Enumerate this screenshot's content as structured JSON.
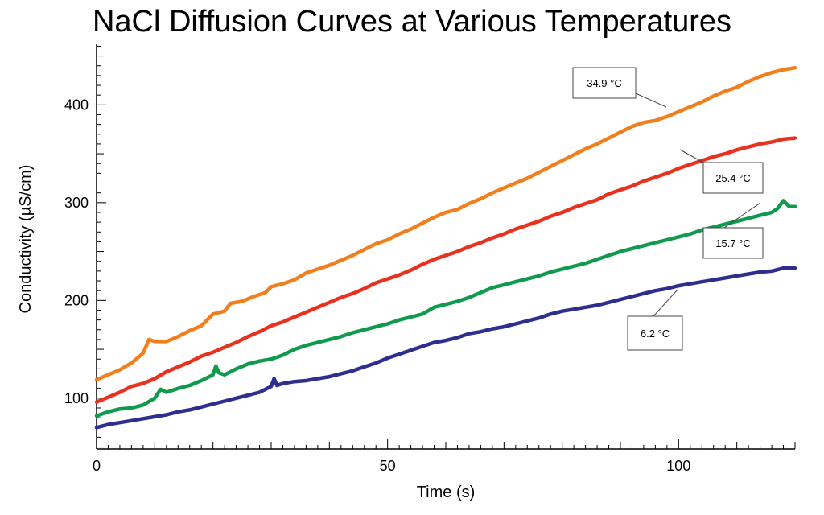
{
  "chart_data": {
    "type": "line",
    "title": "NaCl Diffusion Curves at Various Temperatures",
    "xlabel": "Time (s)",
    "ylabel": "Conductivity (µS/cm)",
    "xlim": [
      0,
      120
    ],
    "ylim": [
      48,
      462
    ],
    "x_ticks": [
      0,
      50,
      100
    ],
    "y_ticks": [
      100,
      200,
      300,
      400
    ],
    "grid": false,
    "series": [
      {
        "name": "34.9 °C",
        "color": "#f07f1e",
        "points": [
          [
            0,
            119
          ],
          [
            2,
            124
          ],
          [
            4,
            129
          ],
          [
            6,
            136
          ],
          [
            8,
            146
          ],
          [
            9,
            160
          ],
          [
            10,
            158
          ],
          [
            12,
            158
          ],
          [
            14,
            163
          ],
          [
            16,
            169
          ],
          [
            18,
            174
          ],
          [
            20,
            186
          ],
          [
            22,
            189
          ],
          [
            23,
            197
          ],
          [
            25,
            199
          ],
          [
            27,
            204
          ],
          [
            29,
            208
          ],
          [
            30,
            214
          ],
          [
            32,
            217
          ],
          [
            34,
            221
          ],
          [
            36,
            228
          ],
          [
            38,
            232
          ],
          [
            40,
            236
          ],
          [
            42,
            241
          ],
          [
            44,
            246
          ],
          [
            46,
            252
          ],
          [
            48,
            258
          ],
          [
            50,
            262
          ],
          [
            52,
            268
          ],
          [
            54,
            273
          ],
          [
            56,
            279
          ],
          [
            58,
            285
          ],
          [
            60,
            290
          ],
          [
            62,
            293
          ],
          [
            64,
            299
          ],
          [
            66,
            304
          ],
          [
            68,
            310
          ],
          [
            70,
            315
          ],
          [
            72,
            320
          ],
          [
            74,
            325
          ],
          [
            76,
            331
          ],
          [
            78,
            337
          ],
          [
            80,
            343
          ],
          [
            82,
            349
          ],
          [
            84,
            355
          ],
          [
            86,
            360
          ],
          [
            88,
            366
          ],
          [
            90,
            372
          ],
          [
            92,
            378
          ],
          [
            94,
            382
          ],
          [
            96,
            384
          ],
          [
            98,
            388
          ],
          [
            100,
            393
          ],
          [
            102,
            398
          ],
          [
            104,
            403
          ],
          [
            106,
            409
          ],
          [
            108,
            414
          ],
          [
            110,
            418
          ],
          [
            112,
            424
          ],
          [
            114,
            429
          ],
          [
            116,
            433
          ],
          [
            118,
            436
          ],
          [
            120,
            438
          ]
        ]
      },
      {
        "name": "25.4 °C",
        "color": "#e8321f",
        "points": [
          [
            0,
            96
          ],
          [
            2,
            101
          ],
          [
            4,
            106
          ],
          [
            6,
            112
          ],
          [
            8,
            115
          ],
          [
            10,
            120
          ],
          [
            12,
            127
          ],
          [
            14,
            132
          ],
          [
            16,
            137
          ],
          [
            18,
            143
          ],
          [
            20,
            147
          ],
          [
            22,
            152
          ],
          [
            24,
            157
          ],
          [
            26,
            163
          ],
          [
            28,
            168
          ],
          [
            30,
            174
          ],
          [
            32,
            178
          ],
          [
            34,
            183
          ],
          [
            36,
            188
          ],
          [
            38,
            193
          ],
          [
            40,
            198
          ],
          [
            42,
            203
          ],
          [
            44,
            207
          ],
          [
            46,
            212
          ],
          [
            48,
            218
          ],
          [
            50,
            222
          ],
          [
            52,
            226
          ],
          [
            54,
            231
          ],
          [
            56,
            237
          ],
          [
            58,
            242
          ],
          [
            60,
            246
          ],
          [
            62,
            250
          ],
          [
            64,
            255
          ],
          [
            66,
            259
          ],
          [
            68,
            264
          ],
          [
            70,
            268
          ],
          [
            72,
            273
          ],
          [
            74,
            277
          ],
          [
            76,
            281
          ],
          [
            78,
            286
          ],
          [
            80,
            290
          ],
          [
            82,
            295
          ],
          [
            84,
            299
          ],
          [
            86,
            303
          ],
          [
            88,
            309
          ],
          [
            90,
            313
          ],
          [
            92,
            317
          ],
          [
            94,
            322
          ],
          [
            96,
            326
          ],
          [
            98,
            330
          ],
          [
            100,
            335
          ],
          [
            102,
            339
          ],
          [
            104,
            343
          ],
          [
            106,
            347
          ],
          [
            108,
            350
          ],
          [
            110,
            354
          ],
          [
            112,
            357
          ],
          [
            114,
            360
          ],
          [
            116,
            362
          ],
          [
            118,
            365
          ],
          [
            120,
            366
          ]
        ]
      },
      {
        "name": "15.7 °C",
        "color": "#109a4e",
        "points": [
          [
            0,
            82
          ],
          [
            2,
            86
          ],
          [
            4,
            89
          ],
          [
            6,
            90
          ],
          [
            8,
            93
          ],
          [
            10,
            100
          ],
          [
            11,
            109
          ],
          [
            12,
            106
          ],
          [
            14,
            110
          ],
          [
            16,
            113
          ],
          [
            18,
            118
          ],
          [
            20,
            124
          ],
          [
            20.5,
            133
          ],
          [
            21,
            126
          ],
          [
            22,
            124
          ],
          [
            24,
            130
          ],
          [
            26,
            135
          ],
          [
            28,
            138
          ],
          [
            30,
            140
          ],
          [
            32,
            144
          ],
          [
            34,
            150
          ],
          [
            36,
            154
          ],
          [
            38,
            157
          ],
          [
            40,
            160
          ],
          [
            42,
            163
          ],
          [
            44,
            167
          ],
          [
            46,
            170
          ],
          [
            48,
            173
          ],
          [
            50,
            176
          ],
          [
            52,
            180
          ],
          [
            54,
            183
          ],
          [
            56,
            186
          ],
          [
            58,
            193
          ],
          [
            60,
            196
          ],
          [
            62,
            199
          ],
          [
            64,
            203
          ],
          [
            66,
            208
          ],
          [
            68,
            213
          ],
          [
            70,
            216
          ],
          [
            72,
            219
          ],
          [
            74,
            222
          ],
          [
            76,
            225
          ],
          [
            78,
            229
          ],
          [
            80,
            232
          ],
          [
            82,
            235
          ],
          [
            84,
            238
          ],
          [
            86,
            242
          ],
          [
            88,
            246
          ],
          [
            90,
            250
          ],
          [
            92,
            253
          ],
          [
            94,
            256
          ],
          [
            96,
            259
          ],
          [
            98,
            262
          ],
          [
            100,
            265
          ],
          [
            102,
            268
          ],
          [
            104,
            272
          ],
          [
            106,
            275
          ],
          [
            108,
            278
          ],
          [
            110,
            281
          ],
          [
            112,
            284
          ],
          [
            114,
            287
          ],
          [
            116,
            290
          ],
          [
            117,
            294
          ],
          [
            118,
            302
          ],
          [
            119,
            296
          ],
          [
            120,
            296
          ]
        ]
      },
      {
        "name": "6.2 °C",
        "color": "#2e2e8f",
        "points": [
          [
            0,
            70
          ],
          [
            2,
            73
          ],
          [
            4,
            75
          ],
          [
            6,
            77
          ],
          [
            8,
            79
          ],
          [
            10,
            81
          ],
          [
            12,
            83
          ],
          [
            14,
            86
          ],
          [
            16,
            88
          ],
          [
            18,
            91
          ],
          [
            20,
            94
          ],
          [
            22,
            97
          ],
          [
            24,
            100
          ],
          [
            26,
            103
          ],
          [
            28,
            106
          ],
          [
            30,
            112
          ],
          [
            30.5,
            120
          ],
          [
            31,
            113
          ],
          [
            32,
            115
          ],
          [
            34,
            117
          ],
          [
            36,
            118
          ],
          [
            38,
            120
          ],
          [
            40,
            122
          ],
          [
            42,
            125
          ],
          [
            44,
            128
          ],
          [
            46,
            132
          ],
          [
            48,
            136
          ],
          [
            50,
            141
          ],
          [
            52,
            145
          ],
          [
            54,
            149
          ],
          [
            56,
            153
          ],
          [
            58,
            157
          ],
          [
            60,
            159
          ],
          [
            62,
            162
          ],
          [
            64,
            166
          ],
          [
            66,
            168
          ],
          [
            68,
            171
          ],
          [
            70,
            173
          ],
          [
            72,
            176
          ],
          [
            74,
            179
          ],
          [
            76,
            182
          ],
          [
            78,
            186
          ],
          [
            80,
            189
          ],
          [
            82,
            191
          ],
          [
            84,
            193
          ],
          [
            86,
            195
          ],
          [
            88,
            198
          ],
          [
            90,
            201
          ],
          [
            92,
            204
          ],
          [
            94,
            207
          ],
          [
            96,
            210
          ],
          [
            98,
            212
          ],
          [
            100,
            215
          ],
          [
            102,
            217
          ],
          [
            104,
            219
          ],
          [
            106,
            221
          ],
          [
            108,
            223
          ],
          [
            110,
            225
          ],
          [
            112,
            227
          ],
          [
            114,
            229
          ],
          [
            116,
            230
          ],
          [
            118,
            233
          ],
          [
            120,
            233
          ]
        ]
      }
    ],
    "annotations": [
      {
        "label": "34.9 °C",
        "series": 0,
        "box_x": 0,
        "box_y": 0
      },
      {
        "label": "25.4 °C",
        "series": 1
      },
      {
        "label": "15.7 °C",
        "series": 2
      },
      {
        "label": "6.2 °C",
        "series": 3
      }
    ]
  }
}
